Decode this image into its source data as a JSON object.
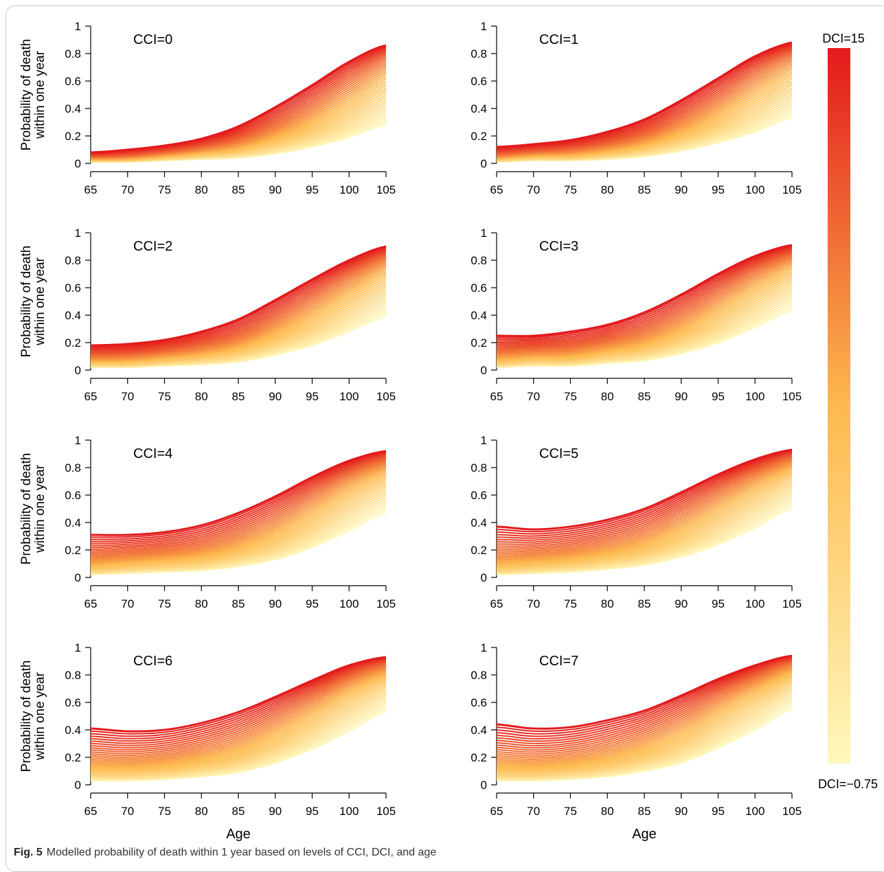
{
  "caption": {
    "label": "Fig. 5",
    "text": "Modelled probability of death within 1 year based on levels of CCI, DCI, and age"
  },
  "colorbar": {
    "top_label": "DCI=15",
    "bottom_label": "DCI=−0.75",
    "color_low": "#fff7bc",
    "color_mid": "#fdb94e",
    "color_high": "#e31a1c"
  },
  "chart_data": [
    {
      "type": "line",
      "title": "CCI=0",
      "xlabel": "",
      "ylabel": "Probability of death within one year",
      "xlim": [
        65,
        105
      ],
      "ylim": [
        0,
        1
      ],
      "x_ticks": [
        "65",
        "70",
        "75",
        "80",
        "85",
        "90",
        "95",
        "100",
        "105"
      ],
      "y_ticks": [
        "0",
        "0.2",
        "0.4",
        "0.6",
        "0.8",
        "1"
      ],
      "x": [
        65,
        70,
        75,
        80,
        85,
        90,
        95,
        100,
        105
      ],
      "series": [
        {
          "name": "DCI=-0.75",
          "values": [
            0.01,
            0.01,
            0.02,
            0.03,
            0.04,
            0.07,
            0.12,
            0.19,
            0.28
          ]
        },
        {
          "name": "DCI=15",
          "values": [
            0.08,
            0.1,
            0.13,
            0.18,
            0.27,
            0.41,
            0.57,
            0.74,
            0.86
          ]
        }
      ]
    },
    {
      "type": "line",
      "title": "CCI=1",
      "xlabel": "",
      "ylabel": "",
      "xlim": [
        65,
        105
      ],
      "ylim": [
        0,
        1
      ],
      "x_ticks": [
        "65",
        "70",
        "75",
        "80",
        "85",
        "90",
        "95",
        "100",
        "105"
      ],
      "y_ticks": [
        "0",
        "0.2",
        "0.4",
        "0.6",
        "0.8",
        "1"
      ],
      "x": [
        65,
        70,
        75,
        80,
        85,
        90,
        95,
        100,
        105
      ],
      "series": [
        {
          "name": "DCI=-0.75",
          "values": [
            0.01,
            0.02,
            0.02,
            0.03,
            0.05,
            0.09,
            0.15,
            0.23,
            0.33
          ]
        },
        {
          "name": "DCI=15",
          "values": [
            0.12,
            0.14,
            0.17,
            0.23,
            0.32,
            0.46,
            0.62,
            0.78,
            0.88
          ]
        }
      ]
    },
    {
      "type": "line",
      "title": "CCI=2",
      "xlabel": "",
      "ylabel": "Probability of death within one year",
      "xlim": [
        65,
        105
      ],
      "ylim": [
        0,
        1
      ],
      "x_ticks": [
        "65",
        "70",
        "75",
        "80",
        "85",
        "90",
        "95",
        "100",
        "105"
      ],
      "y_ticks": [
        "0",
        "0.2",
        "0.4",
        "0.6",
        "0.8",
        "1"
      ],
      "x": [
        65,
        70,
        75,
        80,
        85,
        90,
        95,
        100,
        105
      ],
      "series": [
        {
          "name": "DCI=-0.75",
          "values": [
            0.02,
            0.02,
            0.03,
            0.04,
            0.06,
            0.11,
            0.18,
            0.28,
            0.39
          ]
        },
        {
          "name": "DCI=15",
          "values": [
            0.18,
            0.19,
            0.22,
            0.28,
            0.37,
            0.51,
            0.66,
            0.8,
            0.9
          ]
        }
      ]
    },
    {
      "type": "line",
      "title": "CCI=3",
      "xlabel": "",
      "ylabel": "",
      "xlim": [
        65,
        105
      ],
      "ylim": [
        0,
        1
      ],
      "x_ticks": [
        "65",
        "70",
        "75",
        "80",
        "85",
        "90",
        "95",
        "100",
        "105"
      ],
      "y_ticks": [
        "0",
        "0.2",
        "0.4",
        "0.6",
        "0.8",
        "1"
      ],
      "x": [
        65,
        70,
        75,
        80,
        85,
        90,
        95,
        100,
        105
      ],
      "series": [
        {
          "name": "DCI=-0.75",
          "values": [
            0.02,
            0.03,
            0.03,
            0.05,
            0.07,
            0.12,
            0.2,
            0.31,
            0.43
          ]
        },
        {
          "name": "DCI=15",
          "values": [
            0.25,
            0.25,
            0.28,
            0.33,
            0.42,
            0.55,
            0.7,
            0.83,
            0.91
          ]
        }
      ]
    },
    {
      "type": "line",
      "title": "CCI=4",
      "xlabel": "",
      "ylabel": "Probability of death within one year",
      "xlim": [
        65,
        105
      ],
      "ylim": [
        0,
        1
      ],
      "x_ticks": [
        "65",
        "70",
        "75",
        "80",
        "85",
        "90",
        "95",
        "100",
        "105"
      ],
      "y_ticks": [
        "0",
        "0.2",
        "0.4",
        "0.6",
        "0.8",
        "1"
      ],
      "x": [
        65,
        70,
        75,
        80,
        85,
        90,
        95,
        100,
        105
      ],
      "series": [
        {
          "name": "DCI=-0.75",
          "values": [
            0.02,
            0.03,
            0.04,
            0.05,
            0.08,
            0.13,
            0.22,
            0.34,
            0.47
          ]
        },
        {
          "name": "DCI=15",
          "values": [
            0.31,
            0.31,
            0.33,
            0.38,
            0.47,
            0.59,
            0.73,
            0.85,
            0.92
          ]
        }
      ]
    },
    {
      "type": "line",
      "title": "CCI=5",
      "xlabel": "",
      "ylabel": "",
      "xlim": [
        65,
        105
      ],
      "ylim": [
        0,
        1
      ],
      "x_ticks": [
        "65",
        "70",
        "75",
        "80",
        "85",
        "90",
        "95",
        "100",
        "105"
      ],
      "y_ticks": [
        "0",
        "0.2",
        "0.4",
        "0.6",
        "0.8",
        "1"
      ],
      "x": [
        65,
        70,
        75,
        80,
        85,
        90,
        95,
        100,
        105
      ],
      "series": [
        {
          "name": "DCI=-0.75",
          "values": [
            0.02,
            0.03,
            0.04,
            0.06,
            0.09,
            0.15,
            0.24,
            0.36,
            0.5
          ]
        },
        {
          "name": "DCI=15",
          "values": [
            0.37,
            0.35,
            0.37,
            0.42,
            0.5,
            0.62,
            0.75,
            0.86,
            0.93
          ]
        }
      ]
    },
    {
      "type": "line",
      "title": "CCI=6",
      "xlabel": "Age",
      "ylabel": "Probability of death within one year",
      "xlim": [
        65,
        105
      ],
      "ylim": [
        0,
        1
      ],
      "x_ticks": [
        "65",
        "70",
        "75",
        "80",
        "85",
        "90",
        "95",
        "100",
        "105"
      ],
      "y_ticks": [
        "0",
        "0.2",
        "0.4",
        "0.6",
        "0.8",
        "1"
      ],
      "x": [
        65,
        70,
        75,
        80,
        85,
        90,
        95,
        100,
        105
      ],
      "series": [
        {
          "name": "DCI=-0.75",
          "values": [
            0.03,
            0.03,
            0.04,
            0.06,
            0.09,
            0.16,
            0.26,
            0.39,
            0.53
          ]
        },
        {
          "name": "DCI=15",
          "values": [
            0.41,
            0.39,
            0.4,
            0.45,
            0.53,
            0.64,
            0.76,
            0.87,
            0.93
          ]
        }
      ]
    },
    {
      "type": "line",
      "title": "CCI=7",
      "xlabel": "Age",
      "ylabel": "",
      "xlim": [
        65,
        105
      ],
      "ylim": [
        0,
        1
      ],
      "x_ticks": [
        "65",
        "70",
        "75",
        "80",
        "85",
        "90",
        "95",
        "100",
        "105"
      ],
      "y_ticks": [
        "0",
        "0.2",
        "0.4",
        "0.6",
        "0.8",
        "1"
      ],
      "x": [
        65,
        70,
        75,
        80,
        85,
        90,
        95,
        100,
        105
      ],
      "series": [
        {
          "name": "DCI=-0.75",
          "values": [
            0.03,
            0.03,
            0.04,
            0.06,
            0.1,
            0.16,
            0.27,
            0.4,
            0.55
          ]
        },
        {
          "name": "DCI=15",
          "values": [
            0.44,
            0.41,
            0.42,
            0.47,
            0.54,
            0.65,
            0.77,
            0.87,
            0.94
          ]
        }
      ]
    }
  ]
}
